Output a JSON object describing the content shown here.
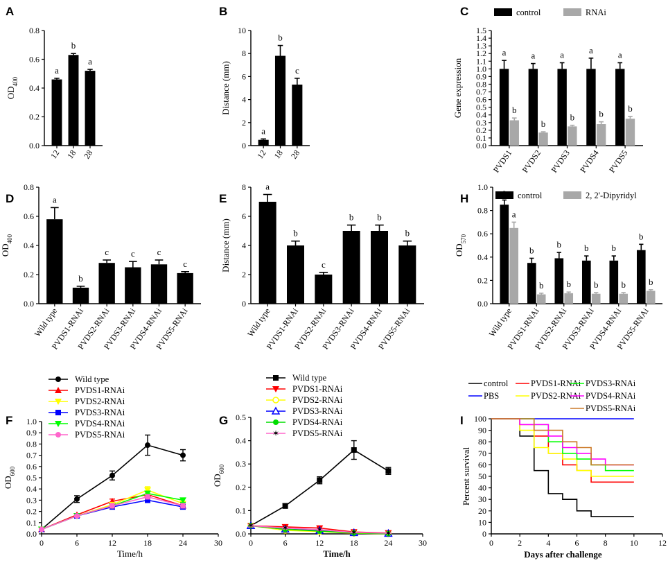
{
  "figure": "Multi-panel bacterial phenotype figure",
  "chart_data": [
    {
      "panel": "A",
      "type": "bar",
      "categories": [
        "12",
        "18",
        "28"
      ],
      "values": [
        0.46,
        0.63,
        0.52
      ],
      "errors": [
        0.008,
        0.01,
        0.01
      ],
      "sig": [
        "a",
        "b",
        "a"
      ],
      "ylabel": "OD",
      "ylabel_sub": "400",
      "xlabel": "",
      "ylim": [
        0,
        0.8
      ],
      "yticks": [
        "0.0",
        "0.2",
        "0.4",
        "0.6",
        "0.8"
      ],
      "rotate_labels": true
    },
    {
      "panel": "B",
      "type": "bar",
      "categories": [
        "12",
        "18",
        "28"
      ],
      "values": [
        0.5,
        7.8,
        5.3
      ],
      "errors": [
        0.08,
        0.9,
        0.55
      ],
      "sig": [
        "a",
        "b",
        "c"
      ],
      "ylabel": "Distance (mm)",
      "xlabel": "",
      "ylim": [
        0,
        10
      ],
      "yticks": [
        "0",
        "2",
        "4",
        "6",
        "8",
        "10"
      ],
      "rotate_labels": true
    },
    {
      "panel": "C",
      "type": "bar",
      "categories": [
        "PVDS1",
        "PVDS2",
        "PVDS3",
        "PVDS4",
        "PVDS5"
      ],
      "series": [
        {
          "name": "control",
          "color": "#000000",
          "values": [
            1.0,
            1.0,
            1.0,
            1.0,
            1.0
          ],
          "errors": [
            0.11,
            0.07,
            0.08,
            0.14,
            0.08
          ],
          "sig": [
            "a",
            "a",
            "a",
            "a",
            "a"
          ]
        },
        {
          "name": "RNAi",
          "color": "#a8a8a8",
          "values": [
            0.33,
            0.17,
            0.25,
            0.28,
            0.35
          ],
          "errors": [
            0.03,
            0.01,
            0.015,
            0.03,
            0.03
          ],
          "sig": [
            "b",
            "b",
            "b",
            "b",
            "b"
          ]
        }
      ],
      "ylabel": "Gene expression",
      "xlabel": "",
      "ylim": [
        0,
        1.5
      ],
      "yticks": [
        "0.0",
        "0.1",
        "0.2",
        "0.3",
        "0.4",
        "0.5",
        "0.6",
        "0.7",
        "0.8",
        "0.9",
        "1.0",
        "1.1",
        "1.2",
        "1.3",
        "1.4",
        "1.5"
      ],
      "rotate_labels": true
    },
    {
      "panel": "D",
      "type": "bar",
      "categories": [
        "Wild type",
        "PVDS1-RNAi",
        "PVDS2-RNAi",
        "PVDS3-RNAi",
        "PVDS4-RNAi",
        "PVDS5-RNAi"
      ],
      "values": [
        0.58,
        0.11,
        0.28,
        0.25,
        0.27,
        0.21
      ],
      "errors": [
        0.08,
        0.01,
        0.02,
        0.04,
        0.03,
        0.01
      ],
      "sig": [
        "a",
        "b",
        "c",
        "c",
        "c",
        "c"
      ],
      "ylabel": "OD",
      "ylabel_sub": "400",
      "xlabel": "",
      "ylim": [
        0,
        0.8
      ],
      "yticks": [
        "0.0",
        "0.2",
        "0.4",
        "0.6",
        "0.8"
      ],
      "rotate_labels": true
    },
    {
      "panel": "E",
      "type": "bar",
      "categories": [
        "Wild type",
        "PVDS1-RNAi",
        "PVDS2-RNAi",
        "PVDS3-RNAi",
        "PVDS4-RNAi",
        "PVDS5-RNAi"
      ],
      "values": [
        7.0,
        4.0,
        2.0,
        5.0,
        5.0,
        4.0
      ],
      "errors": [
        0.5,
        0.3,
        0.15,
        0.4,
        0.4,
        0.3
      ],
      "sig": [
        "a",
        "b",
        "c",
        "b",
        "b",
        "b"
      ],
      "ylabel": "Distance (mm)",
      "xlabel": "",
      "ylim": [
        0,
        8
      ],
      "yticks": [
        "0",
        "2",
        "4",
        "6",
        "8"
      ],
      "rotate_labels": true
    },
    {
      "panel": "H",
      "type": "bar",
      "categories": [
        "Wild type",
        "PVDS1-RNAi",
        "PVDS2-RNAi",
        "PVDS3-RNAi",
        "PVDS4-RNAi",
        "PVDS5-RNAi"
      ],
      "series": [
        {
          "name": "control",
          "color": "#000000",
          "values": [
            0.85,
            0.35,
            0.39,
            0.37,
            0.37,
            0.46
          ],
          "errors": [
            0.04,
            0.04,
            0.05,
            0.04,
            0.04,
            0.05
          ],
          "sig": [
            "a",
            "b",
            "b",
            "b",
            "b",
            "b"
          ]
        },
        {
          "name": "2, 2'-Dipyridyl",
          "color": "#a8a8a8",
          "values": [
            0.65,
            0.08,
            0.09,
            0.085,
            0.085,
            0.11
          ],
          "errors": [
            0.05,
            0.01,
            0.01,
            0.01,
            0.01,
            0.01
          ],
          "sig": [
            "a",
            "b",
            "b",
            "b",
            "b",
            "b"
          ]
        }
      ],
      "ylabel": "OD",
      "ylabel_sub": "570",
      "xlabel": "",
      "ylim": [
        0,
        1.0
      ],
      "yticks": [
        "0.0",
        "0.2",
        "0.4",
        "0.6",
        "0.8",
        "1.0"
      ],
      "rotate_labels": true
    },
    {
      "panel": "F",
      "type": "line",
      "x": [
        0,
        6,
        12,
        18,
        24
      ],
      "series": [
        {
          "name": "Wild type",
          "color": "#000000",
          "marker": "circle",
          "values": [
            0.04,
            0.31,
            0.52,
            0.79,
            0.7
          ],
          "errors": [
            0.01,
            0.03,
            0.04,
            0.09,
            0.05
          ]
        },
        {
          "name": "PVDS1-RNAi",
          "color": "#ff0000",
          "marker": "triangle-up",
          "values": [
            0.04,
            0.17,
            0.29,
            0.35,
            0.25
          ],
          "errors": [
            0.01,
            0.01,
            0.02,
            0.03,
            0.02
          ]
        },
        {
          "name": "PVDS2-RNAi",
          "color": "#ffff00",
          "marker": "triangle-down",
          "values": [
            0.04,
            0.16,
            0.26,
            0.39,
            0.27
          ],
          "errors": [
            0.01,
            0.01,
            0.02,
            0.03,
            0.02
          ]
        },
        {
          "name": "PVDS3-RNAi",
          "color": "#0000ff",
          "marker": "square",
          "values": [
            0.04,
            0.16,
            0.24,
            0.3,
            0.24
          ],
          "errors": [
            0.01,
            0.01,
            0.02,
            0.02,
            0.02
          ]
        },
        {
          "name": "PVDS4-RNAi",
          "color": "#00ff00",
          "marker": "triangle-down",
          "values": [
            0.04,
            0.16,
            0.25,
            0.36,
            0.3
          ],
          "errors": [
            0.01,
            0.01,
            0.02,
            0.02,
            0.02
          ]
        },
        {
          "name": "PVDS5-RNAi",
          "color": "#ff66cc",
          "marker": "circle",
          "values": [
            0.04,
            0.16,
            0.25,
            0.33,
            0.25
          ],
          "errors": [
            0.01,
            0.01,
            0.02,
            0.02,
            0.02
          ]
        }
      ],
      "xlabel": "Time/h",
      "ylabel": "OD",
      "ylabel_sub": "600",
      "xlim": [
        0,
        30
      ],
      "xticks": [
        "0",
        "6",
        "12",
        "18",
        "24",
        "30"
      ],
      "ylim": [
        0,
        1.0
      ],
      "yticks": [
        "0.0",
        "0.1",
        "0.2",
        "0.3",
        "0.4",
        "0.5",
        "0.6",
        "0.7",
        "0.8",
        "0.9",
        "1.0"
      ]
    },
    {
      "panel": "G",
      "type": "line",
      "x": [
        0,
        6,
        12,
        18,
        24
      ],
      "series": [
        {
          "name": "Wild type",
          "color": "#000000",
          "marker": "square",
          "values": [
            0.035,
            0.12,
            0.23,
            0.36,
            0.27
          ],
          "errors": [
            0.005,
            0.01,
            0.015,
            0.04,
            0.015
          ]
        },
        {
          "name": "PVDS1-RNAi",
          "color": "#ff0000",
          "marker": "triangle-down",
          "values": [
            0.035,
            0.03,
            0.025,
            0.008,
            0.004
          ],
          "errors": [
            0.005,
            0.006,
            0.006,
            0.004,
            0.003
          ]
        },
        {
          "name": "PVDS2-RNAi",
          "color": "#ffff00",
          "marker": "circle-open",
          "values": [
            0.035,
            0.015,
            0.01,
            0.003,
            0.0
          ],
          "errors": [
            0.005,
            0.004,
            0.004,
            0.002,
            0.002
          ]
        },
        {
          "name": "PVDS3-RNAi",
          "color": "#0000ff",
          "marker": "triangle-open",
          "values": [
            0.035,
            0.02,
            0.015,
            0.005,
            0.002
          ],
          "errors": [
            0.005,
            0.004,
            0.004,
            0.002,
            0.002
          ]
        },
        {
          "name": "PVDS4-RNAi",
          "color": "#00dd00",
          "marker": "circle",
          "values": [
            0.035,
            0.02,
            0.012,
            0.004,
            0.001
          ],
          "errors": [
            0.005,
            0.004,
            0.004,
            0.002,
            0.002
          ]
        },
        {
          "name": "PVDS5-RNAi",
          "color": "#ff66cc",
          "marker": "star",
          "values": [
            0.035,
            0.025,
            0.018,
            0.006,
            0.003
          ],
          "errors": [
            0.005,
            0.004,
            0.004,
            0.002,
            0.002
          ]
        }
      ],
      "xlabel": "Time/h",
      "ylabel": "OD",
      "ylabel_sub": "600",
      "xlim": [
        0,
        30
      ],
      "xticks": [
        "0",
        "6",
        "12",
        "18",
        "24",
        "30"
      ],
      "ylim": [
        0,
        0.5
      ],
      "yticks": [
        "0.0",
        "0.1",
        "0.2",
        "0.3",
        "0.4",
        "0.5"
      ]
    },
    {
      "panel": "I",
      "type": "step",
      "series": [
        {
          "name": "control",
          "color": "#000000",
          "points": [
            [
              0,
              100
            ],
            [
              2,
              100
            ],
            [
              2,
              85
            ],
            [
              3,
              85
            ],
            [
              3,
              55
            ],
            [
              4,
              55
            ],
            [
              4,
              35
            ],
            [
              5,
              35
            ],
            [
              5,
              30
            ],
            [
              6,
              30
            ],
            [
              6,
              20
            ],
            [
              7,
              20
            ],
            [
              7,
              15
            ],
            [
              10,
              15
            ]
          ]
        },
        {
          "name": "PBS",
          "color": "#0000ff",
          "points": [
            [
              0,
              100
            ],
            [
              10,
              100
            ]
          ]
        },
        {
          "name": "PVDS1-RNAi",
          "color": "#ff0000",
          "points": [
            [
              0,
              100
            ],
            [
              2,
              100
            ],
            [
              2,
              95
            ],
            [
              3,
              95
            ],
            [
              3,
              85
            ],
            [
              4,
              85
            ],
            [
              4,
              70
            ],
            [
              5,
              70
            ],
            [
              5,
              60
            ],
            [
              6,
              60
            ],
            [
              6,
              55
            ],
            [
              7,
              55
            ],
            [
              7,
              45
            ],
            [
              10,
              45
            ]
          ]
        },
        {
          "name": "PVDS2-RNAi",
          "color": "#ffff00",
          "points": [
            [
              0,
              100
            ],
            [
              2,
              100
            ],
            [
              2,
              90
            ],
            [
              3,
              90
            ],
            [
              3,
              75
            ],
            [
              4,
              75
            ],
            [
              4,
              70
            ],
            [
              5,
              70
            ],
            [
              5,
              65
            ],
            [
              6,
              65
            ],
            [
              6,
              55
            ],
            [
              7,
              55
            ],
            [
              7,
              50
            ],
            [
              10,
              50
            ]
          ]
        },
        {
          "name": "PVDS3-RNAi",
          "color": "#00ff00",
          "points": [
            [
              0,
              100
            ],
            [
              3,
              100
            ],
            [
              3,
              95
            ],
            [
              4,
              95
            ],
            [
              4,
              80
            ],
            [
              5,
              80
            ],
            [
              5,
              70
            ],
            [
              6,
              70
            ],
            [
              6,
              65
            ],
            [
              7,
              65
            ],
            [
              7,
              60
            ],
            [
              8,
              60
            ],
            [
              8,
              55
            ],
            [
              10,
              55
            ]
          ]
        },
        {
          "name": "PVDS4-RNAi",
          "color": "#ff00ff",
          "points": [
            [
              0,
              100
            ],
            [
              2,
              100
            ],
            [
              2,
              95
            ],
            [
              4,
              95
            ],
            [
              4,
              85
            ],
            [
              5,
              85
            ],
            [
              5,
              75
            ],
            [
              6,
              75
            ],
            [
              6,
              70
            ],
            [
              7,
              70
            ],
            [
              7,
              65
            ],
            [
              8,
              65
            ],
            [
              8,
              60
            ],
            [
              10,
              60
            ]
          ]
        },
        {
          "name": "PVDS5-RNAi",
          "color": "#cc7a29",
          "points": [
            [
              0,
              100
            ],
            [
              3,
              100
            ],
            [
              3,
              90
            ],
            [
              5,
              90
            ],
            [
              5,
              80
            ],
            [
              6,
              80
            ],
            [
              6,
              75
            ],
            [
              7,
              75
            ],
            [
              7,
              60
            ],
            [
              8,
              60
            ],
            [
              8,
              60
            ],
            [
              10,
              60
            ]
          ]
        }
      ],
      "xlabel": "Days after challenge",
      "ylabel": "Percent survival",
      "xlim": [
        0,
        12
      ],
      "xticks": [
        "0",
        "2",
        "4",
        "6",
        "8",
        "10",
        "12"
      ],
      "ylim": [
        0,
        100
      ],
      "yticks": [
        "0",
        "10",
        "20",
        "30",
        "40",
        "50",
        "60",
        "70",
        "80",
        "90",
        "100"
      ]
    }
  ]
}
